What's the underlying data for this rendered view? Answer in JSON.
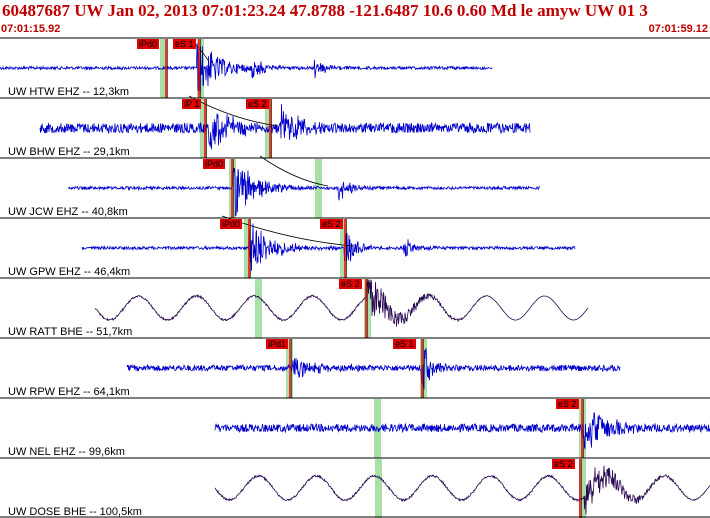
{
  "header": {
    "title": "60487687 UW Jan 02, 2013 07:01:23.24   47.8788 -121.6487 10.6 0.60 Md le amyw UW 01   3",
    "start_time": "07:01:15.92",
    "end_time": "07:01:59.12"
  },
  "colors": {
    "header_text": "#c00000",
    "trace_short_period": "#0000cc",
    "trace_broadband": "#2a0a50",
    "pick_tag": "#e00000",
    "pick_line": "#ff0000",
    "theoretical_window": "#a8e0a8",
    "travel_time_curve": "#000000"
  },
  "panels": [
    {
      "label": "UW HTW EHZ -- 12,3km",
      "trace_type": "short-period",
      "picks": [
        {
          "label": "iPd0"
        },
        {
          "label": "eS 1"
        }
      ]
    },
    {
      "label": "UW BHW EHZ -- 29,1km",
      "trace_type": "short-period",
      "picks": [
        {
          "label": "iP 1"
        },
        {
          "label": "eS 2"
        }
      ]
    },
    {
      "label": "UW JCW EHZ -- 40,8km",
      "trace_type": "short-period",
      "picks": [
        {
          "label": "iPd0"
        }
      ]
    },
    {
      "label": "UW GPW EHZ -- 46,4km",
      "trace_type": "short-period",
      "picks": [
        {
          "label": "iPd0"
        },
        {
          "label": "eS 2"
        }
      ]
    },
    {
      "label": "UW RATT BHE -- 51,7km",
      "trace_type": "broadband",
      "picks": [
        {
          "label": "eS 2"
        }
      ]
    },
    {
      "label": "UW RPW EHZ -- 64,1km",
      "trace_type": "short-period",
      "picks": [
        {
          "label": "iPd1"
        },
        {
          "label": "eS 1"
        }
      ]
    },
    {
      "label": "UW NEL EHZ -- 99,6km",
      "trace_type": "short-period",
      "picks": [
        {
          "label": "eS 2"
        }
      ]
    },
    {
      "label": "UW DOSE BHE -- 100,5km",
      "trace_type": "broadband",
      "picks": [
        {
          "label": "eS 2"
        }
      ]
    }
  ]
}
